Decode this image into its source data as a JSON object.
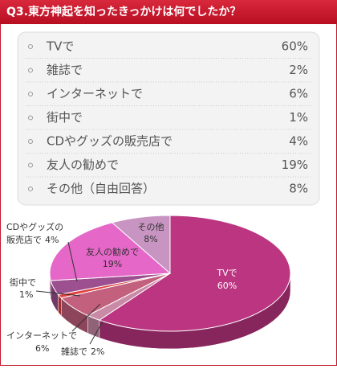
{
  "chart_data": {
    "type": "pie",
    "title": "Q3.東方神起を知ったきっかけは何でしたか？",
    "categories": [
      "TVで",
      "雑誌で",
      "インターネットで",
      "街中で",
      "CDやグッズの販売店で",
      "友人の勧めで",
      "その他（自由回答）"
    ],
    "values": [
      60,
      2,
      6,
      1,
      4,
      19,
      8
    ],
    "value_labels": [
      "60%",
      "2%",
      "6%",
      "1%",
      "4%",
      "19%",
      "8%"
    ],
    "pie_labels": [
      [
        "TVで"
      ],
      [
        "雑誌で"
      ],
      [
        "インターネットで"
      ],
      [
        "街中で"
      ],
      [
        "CDやグッズの",
        "販売店で"
      ],
      [
        "友人の勧めで"
      ],
      [
        "その他"
      ]
    ],
    "colors": [
      "#bb3581",
      "#c98aa6",
      "#c3607e",
      "#e2403f",
      "#9c508f",
      "#e567c8",
      "#c894c2"
    ]
  }
}
